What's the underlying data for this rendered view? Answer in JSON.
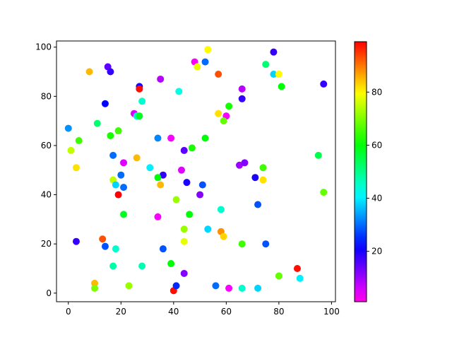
{
  "chart_data": {
    "type": "scatter",
    "title": "",
    "xlabel": "",
    "ylabel": "",
    "xlim": [
      -4.5,
      101.5
    ],
    "ylim": [
      -3.5,
      102.5
    ],
    "xticks": [
      "0",
      "20",
      "40",
      "60",
      "80",
      "100"
    ],
    "yticks": [
      "0",
      "20",
      "40",
      "60",
      "80",
      "100"
    ],
    "grid": false,
    "colormap": "gist_rainbow_r",
    "colorbar": {
      "range": [
        1,
        99
      ],
      "ticks": [
        "20",
        "40",
        "60",
        "80"
      ],
      "placement": "right"
    },
    "points": [
      [
        8,
        90,
        85
      ],
      [
        15,
        92,
        15
      ],
      [
        16,
        90,
        18
      ],
      [
        27,
        84,
        20
      ],
      [
        27,
        83,
        98
      ],
      [
        14,
        77,
        22
      ],
      [
        28,
        78,
        45
      ],
      [
        25,
        73,
        5
      ],
      [
        26,
        72,
        45
      ],
      [
        27,
        72,
        58
      ],
      [
        35,
        87,
        8
      ],
      [
        42,
        82,
        43
      ],
      [
        0,
        67,
        33
      ],
      [
        11,
        69,
        52
      ],
      [
        4,
        62,
        65
      ],
      [
        16,
        64,
        62
      ],
      [
        19,
        66,
        65
      ],
      [
        1,
        58,
        75
      ],
      [
        3,
        51,
        82
      ],
      [
        17,
        56,
        30
      ],
      [
        21,
        53,
        5
      ],
      [
        26,
        55,
        85
      ],
      [
        31,
        51,
        40
      ],
      [
        34,
        63,
        32
      ],
      [
        39,
        63,
        3
      ],
      [
        44,
        58,
        15
      ],
      [
        47,
        59,
        62
      ],
      [
        48,
        94,
        3
      ],
      [
        49,
        92,
        78
      ],
      [
        52,
        94,
        30
      ],
      [
        53,
        99,
        80
      ],
      [
        57,
        89,
        93
      ],
      [
        57,
        73,
        82
      ],
      [
        60,
        72,
        3
      ],
      [
        61,
        76,
        62
      ],
      [
        59,
        70,
        68
      ],
      [
        66,
        83,
        8
      ],
      [
        66,
        79,
        18
      ],
      [
        75,
        93,
        52
      ],
      [
        78,
        98,
        18
      ],
      [
        78,
        89,
        38
      ],
      [
        80,
        89,
        80
      ],
      [
        81,
        84,
        60
      ],
      [
        97,
        85,
        18
      ],
      [
        52,
        63,
        60
      ],
      [
        65,
        52,
        10
      ],
      [
        67,
        53,
        12
      ],
      [
        74,
        51,
        65
      ],
      [
        74,
        46,
        82
      ],
      [
        71,
        47,
        20
      ],
      [
        95,
        56,
        55
      ],
      [
        97,
        41,
        68
      ],
      [
        20,
        48,
        30
      ],
      [
        17,
        46,
        75
      ],
      [
        18,
        44,
        38
      ],
      [
        21,
        43,
        30
      ],
      [
        19,
        40,
        99
      ],
      [
        36,
        48,
        18
      ],
      [
        34,
        47,
        60
      ],
      [
        35,
        44,
        85
      ],
      [
        43,
        50,
        5
      ],
      [
        45,
        45,
        20
      ],
      [
        41,
        38,
        72
      ],
      [
        50,
        40,
        12
      ],
      [
        51,
        44,
        28
      ],
      [
        58,
        34,
        45
      ],
      [
        46,
        32,
        60
      ],
      [
        53,
        26,
        38
      ],
      [
        34,
        31,
        3
      ],
      [
        44,
        26,
        72
      ],
      [
        21,
        32,
        58
      ],
      [
        3,
        21,
        18
      ],
      [
        13,
        22,
        93
      ],
      [
        14,
        19,
        28
      ],
      [
        18,
        18,
        45
      ],
      [
        44,
        21,
        78
      ],
      [
        36,
        18,
        28
      ],
      [
        58,
        25,
        88
      ],
      [
        59,
        23,
        83
      ],
      [
        66,
        20,
        65
      ],
      [
        75,
        20,
        28
      ],
      [
        72,
        36,
        28
      ],
      [
        17,
        11,
        48
      ],
      [
        28,
        11,
        47
      ],
      [
        39,
        12,
        60
      ],
      [
        44,
        8,
        12
      ],
      [
        10,
        4,
        85
      ],
      [
        10,
        2,
        70
      ],
      [
        23,
        3,
        72
      ],
      [
        40,
        1,
        98
      ],
      [
        41,
        3,
        25
      ],
      [
        56,
        3,
        30
      ],
      [
        61,
        2,
        3
      ],
      [
        66,
        2,
        45
      ],
      [
        72,
        2,
        38
      ],
      [
        87,
        10,
        98
      ],
      [
        80,
        7,
        68
      ],
      [
        88,
        6,
        40
      ]
    ]
  }
}
